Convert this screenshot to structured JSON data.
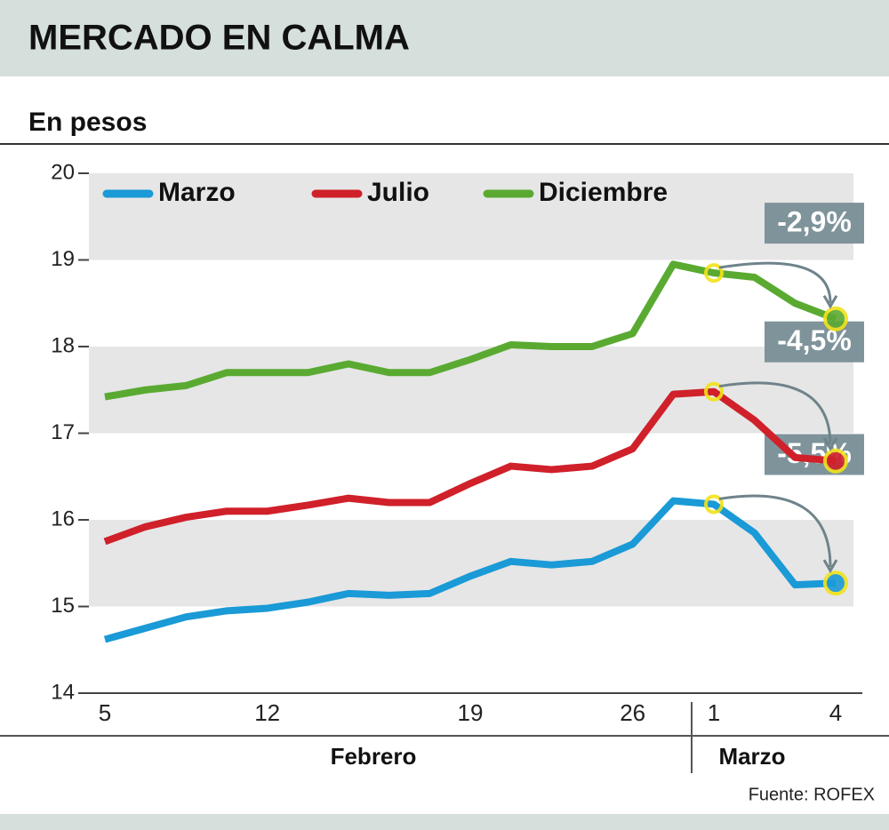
{
  "chart_data": {
    "type": "line",
    "title": "MERCADO EN CALMA",
    "subtitle": "En pesos",
    "categories": [
      "5",
      null,
      null,
      null,
      "12",
      null,
      null,
      null,
      null,
      "19",
      null,
      null,
      null,
      "26",
      null,
      "1",
      null,
      null,
      "4"
    ],
    "month_labels": [
      "Febrero",
      "Marzo"
    ],
    "series": [
      {
        "name": "Marzo",
        "color": "#1a9ad6",
        "values": [
          14.62,
          14.75,
          14.88,
          14.95,
          14.98,
          15.05,
          15.15,
          15.13,
          15.15,
          15.35,
          15.52,
          15.48,
          15.52,
          15.72,
          16.22,
          16.18,
          15.85,
          15.25,
          15.27
        ]
      },
      {
        "name": "Julio",
        "color": "#d0202a",
        "values": [
          15.75,
          15.92,
          16.03,
          16.1,
          16.1,
          16.17,
          16.25,
          16.2,
          16.2,
          16.42,
          16.62,
          16.58,
          16.62,
          16.82,
          17.45,
          17.48,
          17.15,
          16.72,
          16.68
        ]
      },
      {
        "name": "Diciembre",
        "color": "#5aaa32",
        "values": [
          17.42,
          17.5,
          17.55,
          17.7,
          17.7,
          17.7,
          17.8,
          17.7,
          17.7,
          17.85,
          18.02,
          18.0,
          18.0,
          18.15,
          18.95,
          18.85,
          18.8,
          18.5,
          18.32
        ]
      }
    ],
    "annotations": [
      "-5,5%",
      "-4,5%",
      "-2,9%"
    ],
    "ylim": [
      14,
      20
    ],
    "yticks": [
      14,
      15,
      16,
      17,
      18,
      19,
      20
    ],
    "grid": true,
    "source": "Fuente: ROFEX"
  }
}
